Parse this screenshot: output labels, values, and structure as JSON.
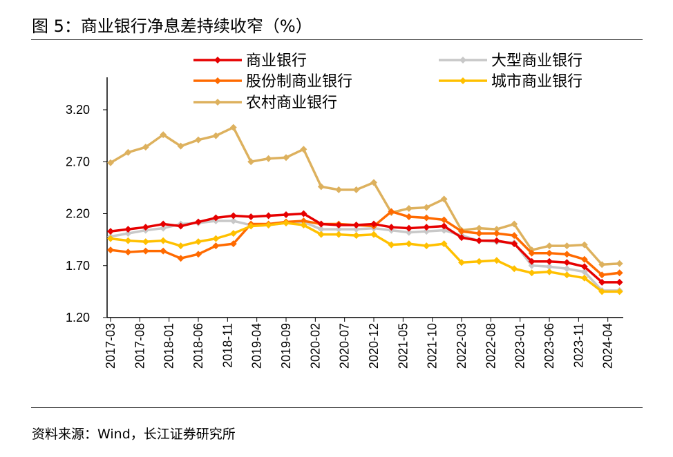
{
  "title": "图 5：商业银行净息差持续收窄（%）",
  "source": "资料来源：Wind，长江证券研究所",
  "chart_data": {
    "type": "line",
    "title": "图 5：商业银行净息差持续收窄（%）",
    "ylim": [
      1.2,
      3.2
    ],
    "yticks": [
      "1.20",
      "1.70",
      "2.20",
      "2.70",
      "3.20"
    ],
    "xtick_labels": [
      "2017-03",
      "2017-08",
      "2018-01",
      "2018-06",
      "2018-11",
      "2019-04",
      "2019-09",
      "2020-02",
      "2020-07",
      "2020-12",
      "2021-05",
      "2021-10",
      "2022-03",
      "2022-08",
      "2023-01",
      "2023-06",
      "2023-11",
      "2024-04"
    ],
    "x": [
      "2017-03",
      "2017-06",
      "2017-09",
      "2017-12",
      "2018-03",
      "2018-06",
      "2018-09",
      "2018-12",
      "2019-03",
      "2019-06",
      "2019-09",
      "2019-12",
      "2020-03",
      "2020-06",
      "2020-09",
      "2020-12",
      "2021-03",
      "2021-06",
      "2021-09",
      "2021-12",
      "2022-03",
      "2022-06",
      "2022-09",
      "2022-12",
      "2023-03",
      "2023-06",
      "2023-09",
      "2023-12",
      "2024-03",
      "2024-06"
    ],
    "legend": "top",
    "grid": false,
    "series": [
      {
        "name": "商业银行",
        "color": "#E60000",
        "values": [
          2.03,
          2.05,
          2.07,
          2.1,
          2.08,
          2.12,
          2.16,
          2.18,
          2.17,
          2.18,
          2.19,
          2.2,
          2.1,
          2.09,
          2.09,
          2.1,
          2.07,
          2.06,
          2.07,
          2.08,
          1.97,
          1.94,
          1.94,
          1.91,
          1.74,
          1.74,
          1.73,
          1.69,
          1.54,
          1.54
        ]
      },
      {
        "name": "大型商业银行",
        "color": "#C8C8C8",
        "values": [
          1.98,
          2.01,
          2.04,
          2.06,
          2.1,
          2.11,
          2.13,
          2.13,
          2.09,
          2.09,
          2.11,
          2.12,
          2.05,
          2.05,
          2.05,
          2.06,
          2.04,
          2.02,
          2.03,
          2.04,
          1.99,
          1.94,
          1.93,
          1.92,
          1.7,
          1.69,
          1.67,
          1.64,
          1.46,
          1.46
        ]
      },
      {
        "name": "股份制商业银行",
        "color": "#FF6A00",
        "values": [
          1.85,
          1.83,
          1.84,
          1.84,
          1.77,
          1.81,
          1.89,
          1.91,
          2.1,
          2.1,
          2.12,
          2.13,
          2.1,
          2.1,
          2.09,
          2.08,
          2.22,
          2.17,
          2.16,
          2.14,
          2.03,
          2.01,
          2.01,
          1.99,
          1.82,
          1.82,
          1.81,
          1.76,
          1.61,
          1.63
        ]
      },
      {
        "name": "城市商业银行",
        "color": "#FFC000",
        "values": [
          1.96,
          1.94,
          1.93,
          1.94,
          1.89,
          1.93,
          1.96,
          2.01,
          2.08,
          2.09,
          2.11,
          2.09,
          2.0,
          2.0,
          1.99,
          2.0,
          1.9,
          1.91,
          1.89,
          1.91,
          1.73,
          1.74,
          1.75,
          1.67,
          1.63,
          1.64,
          1.61,
          1.58,
          1.45,
          1.45
        ]
      },
      {
        "name": "农村商业银行",
        "color": "#DDB15E",
        "values": [
          2.69,
          2.79,
          2.84,
          2.96,
          2.85,
          2.91,
          2.95,
          3.03,
          2.7,
          2.73,
          2.74,
          2.82,
          2.46,
          2.43,
          2.43,
          2.5,
          2.21,
          2.25,
          2.26,
          2.34,
          2.04,
          2.06,
          2.05,
          2.1,
          1.85,
          1.89,
          1.89,
          1.9,
          1.71,
          1.72
        ]
      }
    ]
  }
}
